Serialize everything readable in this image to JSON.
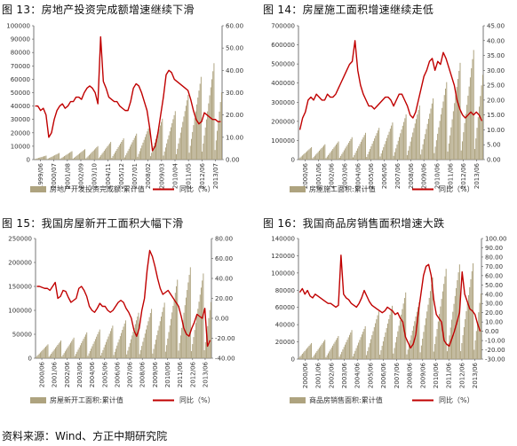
{
  "colors": {
    "bar": "#aea37f",
    "line": "#c00000",
    "axis": "#555555"
  },
  "footer": {
    "source": "资料来源：Wind、方正中期研究院"
  },
  "chart_data": [
    {
      "type": "bar+line",
      "title": "图 13：房地产投资完成额增速继续下滑",
      "x_tick_labels": [
        "1999/06",
        "2000/07",
        "2001/08",
        "2002/09",
        "2003/10",
        "2004/11",
        "2005/12",
        "2007/01",
        "2008/02",
        "2009/03",
        "2010/04",
        "2011/05",
        "2012/06",
        "2013/07"
      ],
      "ylim_left": [
        0,
        100000
      ],
      "yticks_left": [
        "100000",
        "90000",
        "80000",
        "70000",
        "60000",
        "50000",
        "40000",
        "30000",
        "20000",
        "10000",
        "0"
      ],
      "ylim_right": [
        0,
        60
      ],
      "yticks_right": [
        "60.00",
        "50.00",
        "40.00",
        "30.00",
        "20.00",
        "10.00",
        "0.00"
      ],
      "bar_series": {
        "name": "房地产开发投资完成额:累计值",
        "year_end_values": [
          3000,
          4900,
          6300,
          7800,
          10100,
          13200,
          15900,
          19400,
          25300,
          30600,
          36200,
          48300,
          61800,
          72000,
          86000
        ],
        "partial_year_fraction": 0.6
      },
      "line_series": {
        "name": "同比（%）",
        "values": [
          24,
          24,
          22,
          23,
          20,
          10,
          12,
          18,
          22,
          24,
          25,
          23,
          24,
          26,
          26,
          28,
          28,
          27,
          30,
          32,
          33,
          32,
          30,
          25,
          55,
          35,
          32,
          28,
          27,
          26,
          26,
          24,
          23,
          22,
          22,
          26,
          32,
          34,
          33,
          30,
          26,
          22,
          14,
          4,
          6,
          12,
          20,
          28,
          38,
          40,
          39,
          36,
          35,
          34,
          33,
          32,
          31,
          27,
          22,
          18,
          16,
          17,
          21,
          20,
          19,
          18,
          18,
          17,
          17
        ]
      },
      "legend": {
        "bar": "房地产开发投资完成额:累计值",
        "line": "同比（%）"
      }
    },
    {
      "type": "bar+line",
      "title": "图 14：房屋施工面积增速继续走低",
      "x_tick_labels": [
        "2000/06",
        "2001/06",
        "2002/06",
        "2003/06",
        "2004/06",
        "2005/06",
        "2006/06",
        "2007/06",
        "2008/06",
        "2009/06",
        "2010/06",
        "2011/06",
        "2012/06",
        "2013/06"
      ],
      "ylim_left": [
        0,
        700000
      ],
      "yticks_left": [
        "700000",
        "600000",
        "500000",
        "400000",
        "300000",
        "200000",
        "100000",
        "0"
      ],
      "ylim_right": [
        0,
        45
      ],
      "yticks_right": [
        "45.00",
        "40.00",
        "35.00",
        "30.00",
        "25.00",
        "20.00",
        "15.00",
        "10.00",
        "5.00",
        "0.00"
      ],
      "bar_series": {
        "name": "房屋施工面积:累计值",
        "year_end_values": [
          65000,
          80000,
          95000,
          117000,
          140000,
          166000,
          194000,
          236000,
          283000,
          320000,
          405000,
          506000,
          573000,
          665000
        ],
        "partial_year_fraction": 0.65
      },
      "line_series": {
        "name": "同比（%）",
        "values": [
          10,
          14,
          16,
          20,
          21,
          20,
          22,
          21,
          20,
          20,
          22,
          21,
          21,
          22,
          24,
          26,
          28,
          30,
          32,
          33,
          40,
          30,
          25,
          22,
          20,
          18,
          18,
          17,
          18,
          19,
          20,
          21,
          21,
          20,
          18,
          20,
          22,
          22,
          20,
          18,
          15,
          14,
          16,
          20,
          24,
          28,
          30,
          33,
          34,
          30,
          33,
          32,
          36,
          34,
          31,
          28,
          25,
          20,
          17,
          15,
          14,
          15,
          16,
          15,
          16,
          15,
          13
        ]
      },
      "legend": {
        "bar": "房屋施工面积:累计值",
        "line": "同比（%）"
      }
    },
    {
      "type": "bar+line",
      "title": "图 15：我国房屋新开工面积大幅下滑",
      "x_tick_labels": [
        "2000/06",
        "2001/06",
        "2002/06",
        "2003/06",
        "2004/06",
        "2005/06",
        "2006/06",
        "2007/06",
        "2008/06",
        "2009/06",
        "2010/06",
        "2011/06",
        "2012/06",
        "2013/06"
      ],
      "ylim_left": [
        0,
        250000
      ],
      "yticks_left": [
        "250000",
        "200000",
        "150000",
        "100000",
        "50000",
        "0"
      ],
      "ylim_right": [
        -40,
        80
      ],
      "yticks_right": [
        "80.00",
        "60.00",
        "40.00",
        "20.00",
        "0.00",
        "-20.00",
        "-40.00"
      ],
      "bar_series": {
        "name": "房屋新开工面积:累计值",
        "year_end_values": [
          29000,
          37000,
          43000,
          54000,
          60000,
          68000,
          79000,
          95000,
          103000,
          116000,
          164000,
          190000,
          177000,
          201000
        ],
        "partial_year_fraction": 0.55
      },
      "line_series": {
        "name": "同比（%）",
        "values": [
          32,
          32,
          31,
          30,
          30,
          28,
          32,
          36,
          20,
          22,
          28,
          27,
          21,
          16,
          18,
          20,
          30,
          32,
          28,
          22,
          12,
          8,
          6,
          10,
          15,
          12,
          12,
          8,
          6,
          8,
          12,
          16,
          18,
          16,
          10,
          6,
          0,
          -12,
          -18,
          -10,
          8,
          20,
          48,
          68,
          62,
          52,
          40,
          30,
          24,
          26,
          28,
          24,
          20,
          16,
          12,
          2,
          -10,
          -16,
          -18,
          -10,
          -4,
          4,
          2,
          0,
          10,
          -28,
          -22
        ]
      },
      "legend": {
        "bar": "房屋新开工面积:累计值",
        "line": "同比（%）"
      }
    },
    {
      "type": "bar+line",
      "title": "图 16：我国商品房销售面积增速大跌",
      "x_tick_labels": [
        "2000/06",
        "2001/06",
        "2002/06",
        "2003/06",
        "2004/06",
        "2005/06",
        "2006/06",
        "2007/06",
        "2008/06",
        "2009/06",
        "2010/06",
        "2011/06",
        "2012/06",
        "2013/06"
      ],
      "ylim_left": [
        0,
        140000
      ],
      "yticks_left": [
        "140000",
        "120000",
        "100000",
        "80000",
        "60000",
        "40000",
        "20000",
        "0"
      ],
      "ylim_right": [
        -30,
        100
      ],
      "yticks_right": [
        "100.00",
        "90.00",
        "80.00",
        "70.00",
        "60.00",
        "50.00",
        "40.00",
        "30.00",
        "20.00",
        "10.00",
        "0.00",
        "-10.00",
        "-20.00",
        "-30.00"
      ],
      "bar_series": {
        "name": "商品房销售面积:累计值",
        "year_end_values": [
          18600,
          22400,
          26800,
          33700,
          38200,
          55500,
          61900,
          77400,
          65970,
          94800,
          104800,
          109900,
          111300,
          130500
        ],
        "partial_year_fraction": 0.55
      },
      "line_series": {
        "name": "同比（%）",
        "values": [
          42,
          46,
          40,
          44,
          38,
          36,
          40,
          38,
          36,
          34,
          32,
          30,
          30,
          28,
          26,
          28,
          82,
          40,
          36,
          34,
          30,
          28,
          26,
          30,
          36,
          44,
          38,
          32,
          28,
          26,
          24,
          22,
          20,
          22,
          26,
          24,
          22,
          18,
          20,
          14,
          10,
          -6,
          -12,
          -18,
          -14,
          -4,
          20,
          40,
          60,
          70,
          72,
          60,
          34,
          18,
          14,
          10,
          -10,
          -14,
          -16,
          -8,
          0,
          10,
          20,
          64,
          40,
          32,
          24,
          22,
          18,
          8,
          0
        ]
      },
      "legend": {
        "bar": "商品房销售面积:累计值",
        "line": "同比（%）"
      }
    }
  ]
}
